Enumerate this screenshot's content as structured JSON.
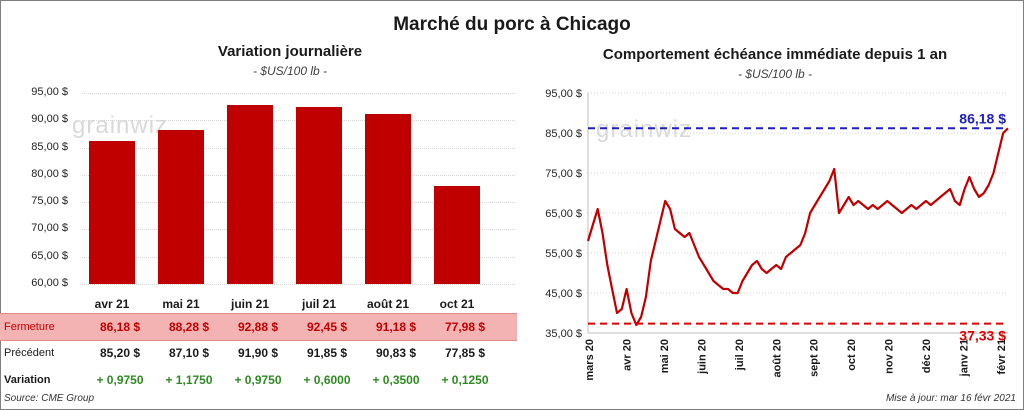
{
  "main_title": "Marché du porc à Chicago",
  "left": {
    "title": "Variation journalière",
    "unit": "- $US/100 lb -",
    "watermark": "grainwiz",
    "chart_data": {
      "type": "bar",
      "categories": [
        "avr 21",
        "mai 21",
        "juin 21",
        "juil 21",
        "août 21",
        "oct 21"
      ],
      "values": [
        86.18,
        88.28,
        92.88,
        92.45,
        91.18,
        77.98
      ],
      "ylim": [
        60,
        95
      ],
      "yticks": [
        "60,00 $",
        "65,00 $",
        "70,00 $",
        "75,00 $",
        "80,00 $",
        "85,00 $",
        "90,00 $",
        "95,00 $"
      ]
    },
    "table": {
      "closing_label": "Fermeture",
      "closing": [
        "86,18  $",
        "88,28  $",
        "92,88  $",
        "92,45  $",
        "91,18  $",
        "77,98  $"
      ],
      "previous_label": "Précédent",
      "previous": [
        "85,20  $",
        "87,10  $",
        "91,90  $",
        "91,85  $",
        "90,83  $",
        "77,85  $"
      ],
      "variation_label": "Variation",
      "variation": [
        "+ 0,9750",
        "+ 1,1750",
        "+ 0,9750",
        "+ 0,6000",
        "+ 0,3500",
        "+ 0,1250"
      ]
    }
  },
  "right": {
    "title": "Comportement  échéance immédiate depuis 1 an",
    "unit": "- $US/100 lb -",
    "watermark": "grainwiz",
    "chart_data": {
      "type": "line",
      "title": "Comportement échéance immédiate depuis 1 an",
      "ylim": [
        35,
        95
      ],
      "yticks": [
        "35,00 $",
        "45,00 $",
        "55,00 $",
        "65,00 $",
        "75,00 $",
        "85,00 $",
        "95,00 $"
      ],
      "xlabels": [
        "mars 20",
        "avr 20",
        "mai 20",
        "juin 20",
        "juil 20",
        "août 20",
        "sept 20",
        "oct 20",
        "nov 20",
        "déc 20",
        "janv 21",
        "févr 21"
      ],
      "series": [
        {
          "name": "Échéance immédiate",
          "color": "#c00000",
          "values": [
            58,
            62,
            66,
            60,
            52,
            46,
            40,
            41,
            46,
            40,
            37,
            39,
            44,
            53,
            58,
            63,
            68,
            66,
            61,
            60,
            59,
            60,
            57,
            54,
            52,
            50,
            48,
            47,
            46,
            46,
            45,
            45,
            48,
            50,
            52,
            53,
            51,
            50,
            51,
            52,
            51,
            54,
            55,
            56,
            57,
            60,
            65,
            67,
            69,
            71,
            73,
            76,
            65,
            67,
            69,
            67,
            68,
            67,
            66,
            67,
            66,
            67,
            68,
            67,
            66,
            65,
            66,
            67,
            66,
            67,
            68,
            67,
            68,
            69,
            70,
            71,
            68,
            67,
            71,
            74,
            71,
            69,
            70,
            72,
            75,
            80,
            85,
            86.18
          ]
        }
      ],
      "hlines": [
        {
          "value": 86.18,
          "label": "86,18 $",
          "color": "#1f1fbf"
        },
        {
          "value": 37.33,
          "label": "37,33 $",
          "color": "#e00000"
        }
      ]
    }
  },
  "footer": {
    "source": "Source: CME Group",
    "updated": "Mise à jour: mar 16 févr 2021"
  }
}
